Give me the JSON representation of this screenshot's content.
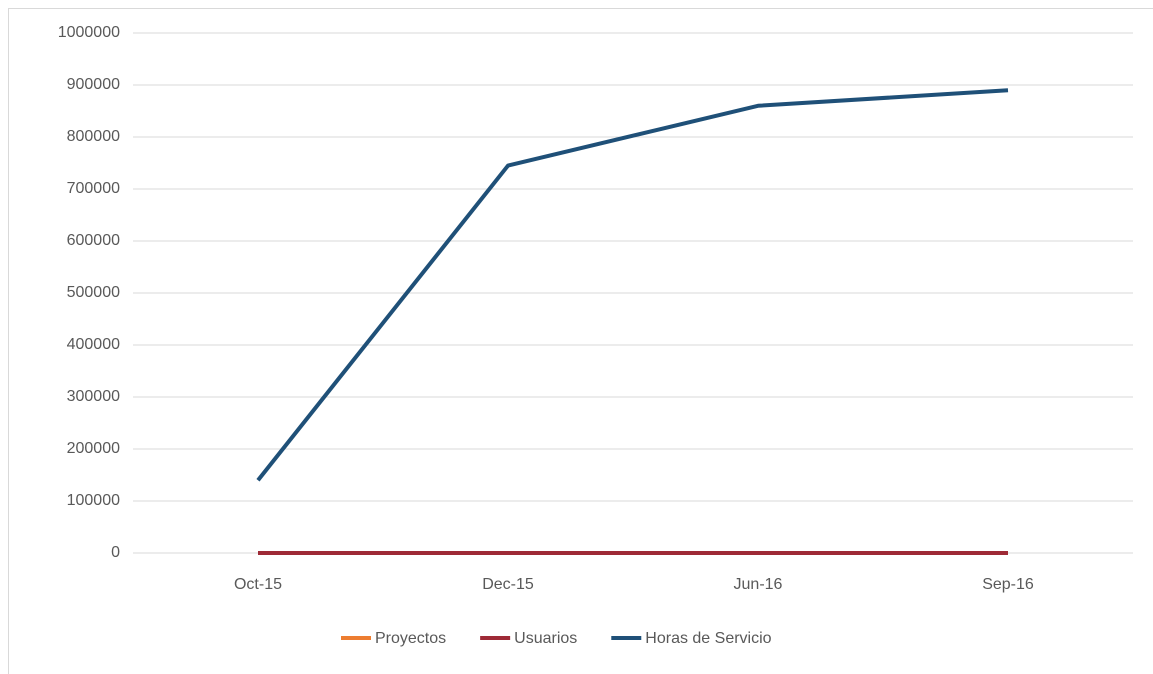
{
  "chart_data": {
    "type": "line",
    "categories": [
      "Oct-15",
      "Dec-15",
      "Jun-16",
      "Sep-16"
    ],
    "series": [
      {
        "name": "Proyectos",
        "color": "#ed7d31",
        "values": [
          0,
          0,
          0,
          0
        ]
      },
      {
        "name": "Usuarios",
        "color": "#9e2a36",
        "values": [
          0,
          0,
          0,
          0
        ]
      },
      {
        "name": "Horas de Servicio",
        "color": "#1f5078",
        "values": [
          140000,
          745000,
          860000,
          890000
        ]
      }
    ],
    "ylim": [
      0,
      1000000
    ],
    "yticks": [
      0,
      100000,
      200000,
      300000,
      400000,
      500000,
      600000,
      700000,
      800000,
      900000,
      1000000
    ],
    "grid": true,
    "legend": "bottom"
  }
}
